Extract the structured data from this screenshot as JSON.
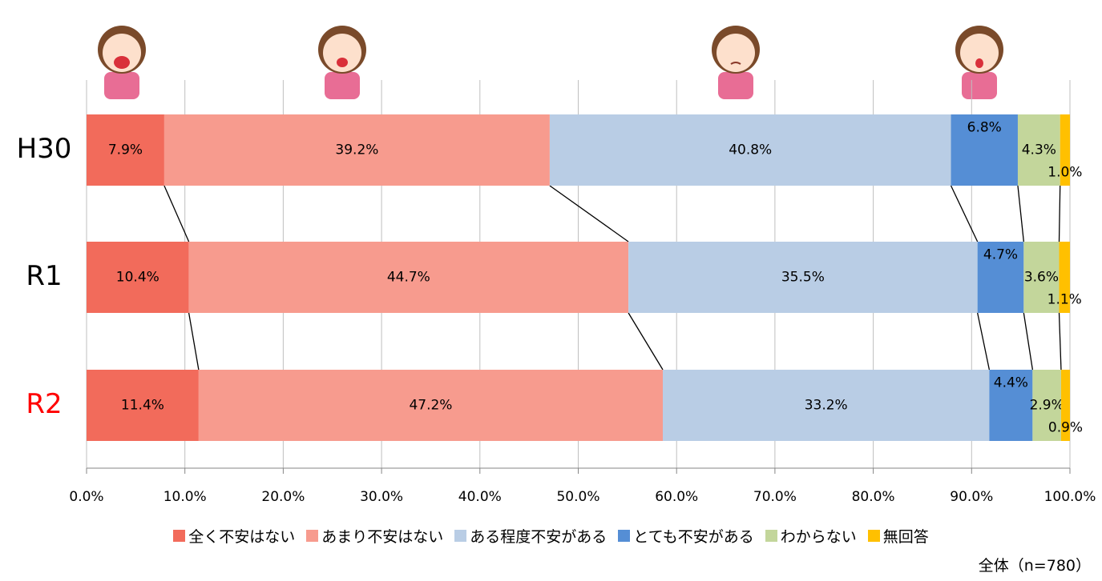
{
  "chart_data": {
    "type": "stacked_bar_horizontal",
    "categories": [
      "H30",
      "R1",
      "R2"
    ],
    "category_colors": [
      "#000000",
      "#000000",
      "#ff0000"
    ],
    "series": [
      {
        "name": "全く不安はない",
        "color": "#f26b5b",
        "values": [
          7.9,
          10.4,
          11.4
        ],
        "value_labels": [
          "7.9%",
          "10.4%",
          "11.4%"
        ]
      },
      {
        "name": "あまり不安はない",
        "color": "#f79b8e",
        "values": [
          39.2,
          44.7,
          47.2
        ],
        "value_labels": [
          "39.2%",
          "44.7%",
          "47.2%"
        ]
      },
      {
        "name": "ある程度不安がある",
        "color": "#b9cde5",
        "values": [
          40.8,
          35.5,
          33.2
        ],
        "value_labels": [
          "40.8%",
          "35.5%",
          "33.2%"
        ]
      },
      {
        "name": "とても不安がある",
        "color": "#558ed5",
        "values": [
          6.8,
          4.7,
          4.4
        ],
        "value_labels": [
          "6.8%",
          "4.7%",
          "4.4%"
        ]
      },
      {
        "name": "わからない",
        "color": "#c3d69b",
        "values": [
          4.3,
          3.6,
          2.9
        ],
        "value_labels": [
          "4.3%",
          "3.6%",
          "2.9%"
        ]
      },
      {
        "name": "無回答",
        "color": "#ffc000",
        "values": [
          1.0,
          1.1,
          0.9
        ],
        "value_labels": [
          "1.0%",
          "1.1%",
          "0.9%"
        ]
      }
    ],
    "xlim": [
      0,
      100
    ],
    "xticks": [
      {
        "value": 0,
        "label": "0.0%"
      },
      {
        "value": 10,
        "label": "10.0%"
      },
      {
        "value": 20,
        "label": "20.0%"
      },
      {
        "value": 30,
        "label": "30.0%"
      },
      {
        "value": 40,
        "label": "40.0%"
      },
      {
        "value": 50,
        "label": "50.0%"
      },
      {
        "value": 60,
        "label": "60.0%"
      },
      {
        "value": 70,
        "label": "70.0%"
      },
      {
        "value": 80,
        "label": "80.0%"
      },
      {
        "value": 90,
        "label": "90.0%"
      },
      {
        "value": 100,
        "label": "100.0%"
      }
    ],
    "grid": true,
    "legend": "bottom",
    "note": "全体（n=780）"
  }
}
